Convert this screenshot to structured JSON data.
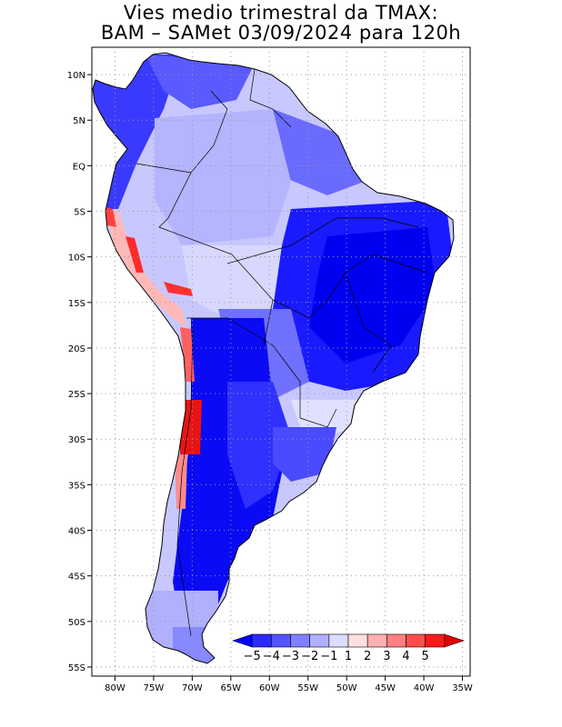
{
  "title": {
    "line1": "Vies medio trimestral da TMAX:",
    "line2": "BAM – SAMet 03/09/2024  para 120h"
  },
  "map": {
    "lon_range": [
      -83,
      -34
    ],
    "lat_range": [
      -56,
      13
    ],
    "grid": true,
    "lon_labels": [
      "80W",
      "75W",
      "70W",
      "65W",
      "60W",
      "55W",
      "50W",
      "45W",
      "40W",
      "35W"
    ],
    "lat_labels": [
      "10N",
      "5N",
      "EQ",
      "5S",
      "10S",
      "15S",
      "20S",
      "25S",
      "30S",
      "35S",
      "40S",
      "45S",
      "50S",
      "55S"
    ],
    "field": "temperature bias (TMAX)"
  },
  "colorbar": {
    "placement": "bottom-right inside map",
    "labels": [
      "−5",
      "−4",
      "−3",
      "−2",
      "−1",
      "1",
      "2",
      "3",
      "4",
      "5"
    ],
    "colors": [
      "#0000ff",
      "#2a2aff",
      "#5555ff",
      "#8080ff",
      "#b0b0ff",
      "#dcdcff",
      "#ffe0e0",
      "#ffb0b0",
      "#ff8080",
      "#ff4d4d",
      "#ff1a1a",
      "#e00000"
    ]
  }
}
